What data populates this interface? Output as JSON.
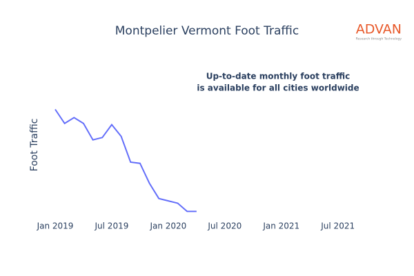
{
  "chart_data": {
    "type": "line",
    "title": "Montpelier Vermont Foot Traffic",
    "y_label": "Foot Traffic",
    "annotation": [
      "Up-to-date monthly foot traffic",
      "is available for all cities worldwide"
    ],
    "logo": {
      "name": "ADVAN",
      "tagline": "Research through Technology"
    },
    "x": [
      "2019-01",
      "2019-02",
      "2019-03",
      "2019-04",
      "2019-05",
      "2019-06",
      "2019-07",
      "2019-08",
      "2019-09",
      "2019-10",
      "2019-11",
      "2019-12",
      "2020-01",
      "2020-02",
      "2020-03",
      "2020-04"
    ],
    "series": [
      {
        "name": "Foot Traffic",
        "color": "#636efa",
        "values": [
          95,
          83,
          88,
          83,
          69,
          71,
          82,
          72,
          50,
          49,
          32,
          19,
          17,
          15,
          8,
          8
        ]
      }
    ],
    "xlim": [
      "2019-01",
      "2021-09"
    ],
    "xticks": [
      {
        "value": "2019-01",
        "label": "Jan 2019"
      },
      {
        "value": "2019-07",
        "label": "Jul 2019"
      },
      {
        "value": "2020-01",
        "label": "Jan 2020"
      },
      {
        "value": "2020-07",
        "label": "Jul 2020"
      },
      {
        "value": "2021-01",
        "label": "Jan 2021"
      },
      {
        "value": "2021-07",
        "label": "Jul 2021"
      }
    ],
    "ylim": [
      0,
      100
    ],
    "grid": false
  }
}
